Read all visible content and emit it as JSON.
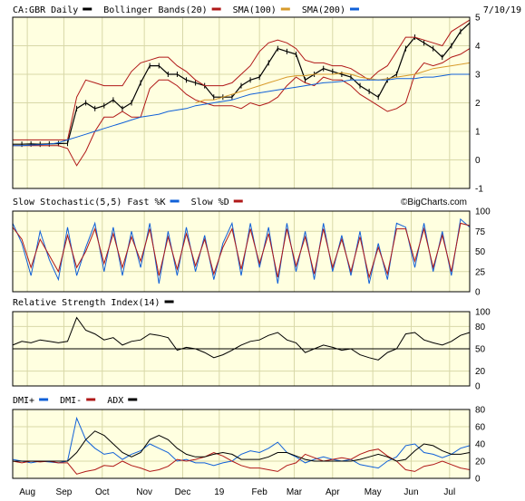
{
  "chart_data": [
    {
      "panel": "price",
      "type": "line",
      "title": "CA:GBR Daily",
      "date": "7/10/19",
      "legend": [
        {
          "name": "CA:GBR Daily",
          "color": "#000000"
        },
        {
          "name": "Bollinger Bands(20)",
          "color": "#b01818"
        },
        {
          "name": "SMA(100)",
          "color": "#d79a2a"
        },
        {
          "name": "SMA(200)",
          "color": "#1060d8"
        }
      ],
      "ylim": [
        -1,
        5
      ],
      "yticks": [
        "5",
        "4",
        "3",
        "2",
        "1",
        "0",
        "-1"
      ],
      "grid": true,
      "x": [
        0,
        5,
        10,
        15,
        20,
        25,
        30,
        35,
        40,
        45,
        50,
        55,
        60,
        65,
        70,
        75,
        80,
        85,
        90,
        95,
        100,
        105,
        110,
        115,
        120,
        125,
        130,
        135,
        140,
        145,
        150,
        155,
        160,
        165,
        170,
        175,
        180,
        185,
        190,
        195,
        200,
        205,
        210,
        215,
        220,
        225,
        230,
        235,
        240,
        245,
        250
      ],
      "series": [
        {
          "name": "CA:GBR Daily",
          "values": [
            0.55,
            0.55,
            0.56,
            0.55,
            0.56,
            0.57,
            0.58,
            1.8,
            2.0,
            1.8,
            1.9,
            2.1,
            1.8,
            2.0,
            2.7,
            3.3,
            3.3,
            3.0,
            3.0,
            2.8,
            2.7,
            2.6,
            2.2,
            2.2,
            2.2,
            2.6,
            2.8,
            2.9,
            3.4,
            3.9,
            3.8,
            3.7,
            2.8,
            3.0,
            3.2,
            3.1,
            3.0,
            2.9,
            2.6,
            2.4,
            2.2,
            2.8,
            3.0,
            3.9,
            4.3,
            4.1,
            3.9,
            3.6,
            4.0,
            4.5,
            4.8
          ]
        },
        {
          "name": "BB upper",
          "values": [
            0.7,
            0.7,
            0.7,
            0.7,
            0.7,
            0.7,
            0.7,
            2.2,
            2.8,
            2.7,
            2.6,
            2.6,
            2.6,
            3.1,
            3.4,
            3.5,
            3.6,
            3.6,
            3.3,
            3.1,
            2.8,
            2.6,
            2.6,
            2.6,
            2.7,
            3.0,
            3.3,
            3.8,
            4.1,
            4.2,
            4.1,
            3.9,
            3.5,
            3.4,
            3.4,
            3.3,
            3.3,
            3.2,
            3.0,
            2.8,
            3.1,
            3.3,
            3.8,
            4.3,
            4.3,
            4.2,
            4.1,
            4.0,
            4.5,
            4.7,
            4.9
          ]
        },
        {
          "name": "BB lower",
          "values": [
            0.5,
            0.5,
            0.5,
            0.5,
            0.5,
            0.5,
            0.4,
            -0.2,
            0.3,
            1.0,
            1.5,
            1.5,
            1.7,
            1.5,
            1.5,
            2.5,
            2.8,
            2.8,
            2.6,
            2.3,
            2.1,
            2.0,
            1.9,
            1.9,
            1.9,
            1.8,
            2.0,
            1.9,
            2.0,
            2.2,
            2.6,
            2.9,
            2.7,
            2.6,
            2.9,
            2.8,
            2.8,
            2.6,
            2.3,
            2.1,
            1.9,
            1.7,
            1.8,
            2.0,
            3.0,
            3.4,
            3.3,
            3.4,
            3.6,
            3.7,
            3.9
          ]
        },
        {
          "name": "SMA(100)",
          "values": [
            null,
            null,
            null,
            null,
            null,
            null,
            null,
            null,
            null,
            null,
            null,
            null,
            null,
            null,
            null,
            null,
            null,
            null,
            null,
            null,
            2.0,
            2.1,
            2.1,
            2.2,
            2.3,
            2.4,
            2.5,
            2.6,
            2.7,
            2.8,
            2.9,
            2.95,
            2.95,
            3.0,
            3.0,
            3.0,
            3.05,
            3.0,
            2.9,
            2.85,
            2.8,
            2.85,
            2.9,
            2.95,
            3.0,
            3.1,
            3.2,
            3.25,
            3.3,
            3.35,
            3.4
          ]
        },
        {
          "name": "SMA(200)",
          "values": [
            0.5,
            0.5,
            0.52,
            0.53,
            0.55,
            0.6,
            0.7,
            0.8,
            0.9,
            1.0,
            1.1,
            1.2,
            1.3,
            1.4,
            1.5,
            1.55,
            1.6,
            1.7,
            1.75,
            1.8,
            1.9,
            1.95,
            2.0,
            2.05,
            2.1,
            2.2,
            2.3,
            2.35,
            2.4,
            2.45,
            2.5,
            2.55,
            2.6,
            2.65,
            2.7,
            2.72,
            2.75,
            2.8,
            2.8,
            2.8,
            2.8,
            2.8,
            2.85,
            2.85,
            2.85,
            2.9,
            2.9,
            2.95,
            3.0,
            3.0,
            3.0
          ]
        }
      ]
    },
    {
      "panel": "stochastic",
      "type": "line",
      "title": "Slow Stochastic(5,5) Fast %K",
      "legend": [
        {
          "name": "Slow Stochastic(5,5) Fast %K",
          "color": "#1060d8"
        },
        {
          "name": "Slow %D",
          "color": "#b01818"
        }
      ],
      "watermark": "©BigCharts.com",
      "ylim": [
        0,
        100
      ],
      "yticks": [
        "100",
        "75",
        "50",
        "25",
        "0"
      ],
      "grid": true,
      "x": [
        0,
        5,
        10,
        15,
        20,
        25,
        30,
        35,
        40,
        45,
        50,
        55,
        60,
        65,
        70,
        75,
        80,
        85,
        90,
        95,
        100,
        105,
        110,
        115,
        120,
        125,
        130,
        135,
        140,
        145,
        150,
        155,
        160,
        165,
        170,
        175,
        180,
        185,
        190,
        195,
        200,
        205,
        210,
        215,
        220,
        225,
        230,
        235,
        240,
        245,
        250
      ],
      "series": [
        {
          "name": "Fast %K",
          "values": [
            85,
            60,
            20,
            75,
            40,
            15,
            80,
            20,
            55,
            85,
            25,
            80,
            20,
            75,
            30,
            85,
            10,
            75,
            20,
            80,
            25,
            70,
            15,
            60,
            85,
            20,
            85,
            30,
            80,
            10,
            85,
            25,
            75,
            15,
            85,
            25,
            70,
            20,
            75,
            10,
            60,
            15,
            85,
            80,
            30,
            85,
            25,
            75,
            20,
            90,
            80
          ]
        },
        {
          "name": "Slow %D",
          "values": [
            80,
            65,
            30,
            65,
            45,
            25,
            70,
            30,
            50,
            78,
            35,
            72,
            30,
            68,
            38,
            78,
            20,
            68,
            28,
            72,
            32,
            65,
            22,
            55,
            78,
            28,
            78,
            35,
            72,
            18,
            78,
            32,
            68,
            22,
            78,
            30,
            65,
            25,
            68,
            18,
            55,
            22,
            78,
            78,
            38,
            78,
            30,
            70,
            25,
            85,
            82
          ]
        }
      ]
    },
    {
      "panel": "rsi",
      "type": "line",
      "title": "Relative Strength Index(14)",
      "legend": [
        {
          "name": "Relative Strength Index(14)",
          "color": "#000000"
        }
      ],
      "ylim": [
        0,
        100
      ],
      "yticks": [
        "100",
        "80",
        "50",
        "20",
        "0"
      ],
      "grid": true,
      "x": [
        0,
        5,
        10,
        15,
        20,
        25,
        30,
        35,
        40,
        45,
        50,
        55,
        60,
        65,
        70,
        75,
        80,
        85,
        90,
        95,
        100,
        105,
        110,
        115,
        120,
        125,
        130,
        135,
        140,
        145,
        150,
        155,
        160,
        165,
        170,
        175,
        180,
        185,
        190,
        195,
        200,
        205,
        210,
        215,
        220,
        225,
        230,
        235,
        240,
        245,
        250
      ],
      "series": [
        {
          "name": "Relative Strength Index(14)",
          "values": [
            55,
            60,
            58,
            62,
            60,
            58,
            60,
            92,
            75,
            70,
            62,
            65,
            55,
            60,
            62,
            70,
            68,
            65,
            48,
            52,
            50,
            45,
            38,
            42,
            48,
            55,
            60,
            62,
            68,
            72,
            62,
            58,
            45,
            50,
            55,
            52,
            48,
            50,
            42,
            38,
            35,
            45,
            50,
            70,
            72,
            62,
            58,
            55,
            60,
            68,
            72
          ]
        }
      ]
    },
    {
      "panel": "dmi",
      "type": "line",
      "title": "DMI+",
      "legend": [
        {
          "name": "DMI+",
          "color": "#1060d8"
        },
        {
          "name": "DMI-",
          "color": "#b01818"
        },
        {
          "name": "ADX",
          "color": "#000000"
        }
      ],
      "ylim": [
        0,
        80
      ],
      "yticks": [
        "80",
        "60",
        "40",
        "20",
        "0"
      ],
      "grid": true,
      "x": [
        0,
        5,
        10,
        15,
        20,
        25,
        30,
        35,
        40,
        45,
        50,
        55,
        60,
        65,
        70,
        75,
        80,
        85,
        90,
        95,
        100,
        105,
        110,
        115,
        120,
        125,
        130,
        135,
        140,
        145,
        150,
        155,
        160,
        165,
        170,
        175,
        180,
        185,
        190,
        195,
        200,
        205,
        210,
        215,
        220,
        225,
        230,
        235,
        240,
        245,
        250
      ],
      "series": [
        {
          "name": "DMI+",
          "values": [
            22,
            20,
            18,
            20,
            19,
            18,
            20,
            70,
            45,
            35,
            28,
            30,
            22,
            28,
            32,
            40,
            35,
            30,
            20,
            22,
            18,
            18,
            15,
            18,
            20,
            28,
            32,
            30,
            35,
            42,
            30,
            25,
            18,
            22,
            25,
            22,
            20,
            22,
            16,
            14,
            12,
            20,
            25,
            38,
            40,
            30,
            28,
            24,
            28,
            35,
            38
          ]
        },
        {
          "name": "DMI-",
          "values": [
            20,
            18,
            20,
            19,
            20,
            18,
            18,
            5,
            8,
            10,
            15,
            14,
            20,
            15,
            12,
            8,
            10,
            14,
            22,
            20,
            22,
            25,
            30,
            26,
            20,
            15,
            12,
            12,
            10,
            8,
            15,
            18,
            28,
            24,
            20,
            22,
            24,
            22,
            28,
            32,
            34,
            26,
            20,
            10,
            8,
            14,
            16,
            20,
            16,
            12,
            10
          ]
        },
        {
          "name": "ADX",
          "values": [
            20,
            20,
            20,
            20,
            20,
            20,
            20,
            30,
            45,
            55,
            50,
            40,
            30,
            25,
            30,
            45,
            50,
            45,
            35,
            28,
            25,
            25,
            28,
            30,
            28,
            22,
            22,
            22,
            25,
            30,
            30,
            26,
            22,
            20,
            20,
            20,
            20,
            20,
            22,
            25,
            28,
            25,
            20,
            22,
            32,
            40,
            38,
            32,
            28,
            28,
            30
          ]
        }
      ]
    }
  ],
  "x_axis": {
    "labels": [
      {
        "text": "Aug",
        "pos": 8
      },
      {
        "text": "Sep",
        "pos": 28
      },
      {
        "text": "Oct",
        "pos": 49
      },
      {
        "text": "Nov",
        "pos": 72
      },
      {
        "text": "Dec",
        "pos": 93
      },
      {
        "text": "19",
        "pos": 113
      },
      {
        "text": "Feb",
        "pos": 135
      },
      {
        "text": "Mar",
        "pos": 154
      },
      {
        "text": "Apr",
        "pos": 175
      },
      {
        "text": "May",
        "pos": 197
      },
      {
        "text": "Jun",
        "pos": 218
      },
      {
        "text": "Jul",
        "pos": 239
      }
    ]
  },
  "colors": {
    "background": "#ffffe0",
    "grid": "#d8d8a8",
    "frame": "#000000"
  }
}
